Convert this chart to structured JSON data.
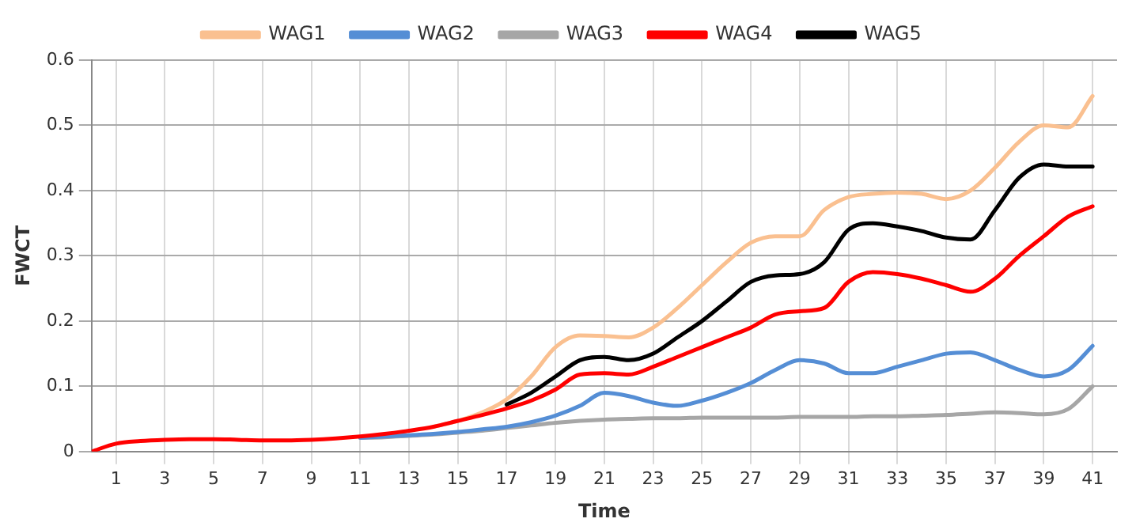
{
  "chart_data": {
    "type": "line",
    "xlabel": "Time",
    "ylabel": "FWCT",
    "x": [
      0,
      1,
      2,
      3,
      4,
      5,
      6,
      7,
      8,
      9,
      10,
      11,
      12,
      13,
      14,
      15,
      16,
      17,
      18,
      19,
      20,
      21,
      22,
      23,
      24,
      25,
      26,
      27,
      28,
      29,
      30,
      31,
      32,
      33,
      34,
      35,
      36,
      37,
      38,
      39,
      40,
      41
    ],
    "series": [
      {
        "name": "WAG1",
        "color": "#fac090",
        "values": [
          null,
          null,
          null,
          null,
          null,
          null,
          null,
          null,
          null,
          null,
          null,
          null,
          null,
          null,
          0.038,
          0.047,
          0.06,
          0.08,
          0.115,
          0.16,
          0.178,
          0.177,
          0.175,
          0.19,
          0.22,
          0.255,
          0.29,
          0.32,
          0.33,
          0.33,
          0.37,
          0.39,
          0.395,
          0.397,
          0.395,
          0.387,
          0.4,
          0.435,
          0.475,
          0.5,
          0.497,
          0.545
        ]
      },
      {
        "name": "WAG2",
        "color": "#558ed5",
        "values": [
          null,
          null,
          null,
          null,
          null,
          null,
          null,
          null,
          null,
          null,
          null,
          0.021,
          0.023,
          0.025,
          0.027,
          0.03,
          0.034,
          0.038,
          0.045,
          0.055,
          0.07,
          0.09,
          0.085,
          0.075,
          0.07,
          0.078,
          0.09,
          0.105,
          0.125,
          0.14,
          0.135,
          0.12,
          0.12,
          0.13,
          0.14,
          0.15,
          0.152,
          0.14,
          0.125,
          0.115,
          0.125,
          0.162
        ]
      },
      {
        "name": "WAG3",
        "color": "#a6a6a6",
        "values": [
          null,
          null,
          null,
          null,
          null,
          null,
          null,
          null,
          null,
          null,
          null,
          0.021,
          0.022,
          0.024,
          0.026,
          0.029,
          0.032,
          0.036,
          0.04,
          0.044,
          0.047,
          0.049,
          0.05,
          0.051,
          0.051,
          0.052,
          0.052,
          0.052,
          0.052,
          0.053,
          0.053,
          0.053,
          0.054,
          0.054,
          0.055,
          0.056,
          0.058,
          0.06,
          0.059,
          0.057,
          0.065,
          0.1
        ]
      },
      {
        "name": "WAG4",
        "color": "#ff0000",
        "values": [
          0,
          0.012,
          0.016,
          0.018,
          0.019,
          0.019,
          0.018,
          0.017,
          0.017,
          0.018,
          0.02,
          0.023,
          0.027,
          0.032,
          0.038,
          0.047,
          0.056,
          0.066,
          0.078,
          0.095,
          0.118,
          0.12,
          0.118,
          0.13,
          0.145,
          0.16,
          0.175,
          0.19,
          0.21,
          0.215,
          0.22,
          0.26,
          0.275,
          0.272,
          0.265,
          0.255,
          0.245,
          0.265,
          0.3,
          0.33,
          0.36,
          0.376
        ]
      },
      {
        "name": "WAG5",
        "color": "#000000",
        "values": [
          null,
          null,
          null,
          null,
          null,
          null,
          null,
          null,
          null,
          null,
          null,
          null,
          null,
          null,
          null,
          null,
          null,
          0.072,
          0.09,
          0.115,
          0.14,
          0.145,
          0.14,
          0.15,
          0.175,
          0.2,
          0.23,
          0.26,
          0.27,
          0.272,
          0.29,
          0.34,
          0.35,
          0.345,
          0.338,
          0.328,
          0.325,
          0.37,
          0.42,
          0.44,
          0.437,
          0.437
        ]
      }
    ],
    "xlim": [
      0,
      42
    ],
    "xticks": [
      1,
      3,
      5,
      7,
      9,
      11,
      13,
      15,
      17,
      19,
      21,
      23,
      25,
      27,
      29,
      31,
      33,
      35,
      37,
      39,
      41
    ],
    "ylim": [
      0,
      0.6
    ],
    "yticks": [
      0,
      0.1,
      0.2,
      0.3,
      0.4,
      0.5,
      0.6
    ],
    "grid": true,
    "legend": "top",
    "marker": "none",
    "line_style": "solid"
  }
}
